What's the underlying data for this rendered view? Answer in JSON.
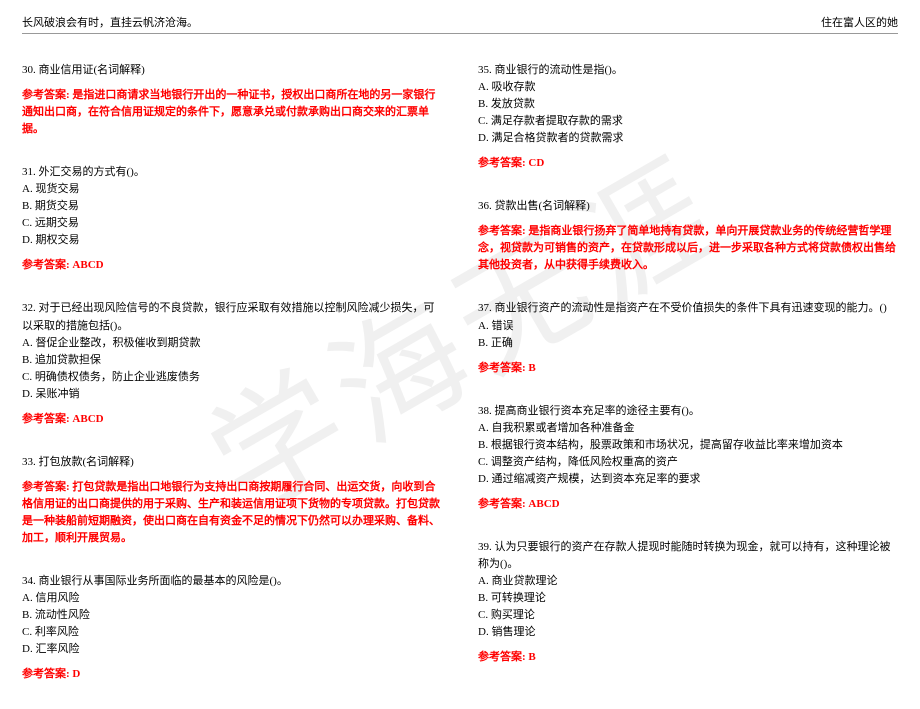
{
  "watermark_text": "学海无涯",
  "header": {
    "left": "长风破浪会有时，直挂云帆济沧海。",
    "right": "住在富人区的她"
  },
  "left_column": [
    {
      "question": "30. 商业信用证(名词解释)",
      "options": [],
      "answer": "参考答案: 是指进口商请求当地银行开出的一种证书，授权出口商所在地的另一家银行通知出口商，在符合信用证规定的条件下，愿意承兑或付款承购出口商交来的汇票单据。"
    },
    {
      "question": "31. 外汇交易的方式有()。",
      "options": [
        "A. 现货交易",
        "B. 期货交易",
        "C. 远期交易",
        "D. 期权交易"
      ],
      "answer": "参考答案: ABCD"
    },
    {
      "question": "32. 对于已经出现风险信号的不良贷款，银行应采取有效措施以控制风险减少损失，可以采取的措施包括()。",
      "options": [
        "A. 督促企业整改，积极催收到期贷款",
        "B. 追加贷款担保",
        "C. 明确债权债务，防止企业逃废债务",
        "D. 呆账冲销"
      ],
      "answer": "参考答案: ABCD"
    },
    {
      "question": "33. 打包放款(名词解释)",
      "options": [],
      "answer": "参考答案: 打包贷款是指出口地银行为支持出口商按期履行合同、出运交货，向收到合格信用证的出口商提供的用于采购、生产和装运信用证项下货物的专项贷款。打包贷款是一种装船前短期融资，使出口商在自有资金不足的情况下仍然可以办理采购、备料、加工，顺利开展贸易。"
    },
    {
      "question": "34. 商业银行从事国际业务所面临的最基本的风险是()。",
      "options": [
        "A. 信用风险",
        "B. 流动性风险",
        "C. 利率风险",
        "D. 汇率风险"
      ],
      "answer": "参考答案: D"
    }
  ],
  "right_column": [
    {
      "question": "35. 商业银行的流动性是指()。",
      "options": [
        "A. 吸收存款",
        "B. 发放贷款",
        "C. 满足存款者提取存款的需求",
        "D. 满足合格贷款者的贷款需求"
      ],
      "answer": "参考答案: CD"
    },
    {
      "question": "36. 贷款出售(名词解释)",
      "options": [],
      "answer": "参考答案: 是指商业银行扬弃了简单地持有贷款，单向开展贷款业务的传统经营哲学理念，视贷款为可销售的资产，在贷款形成以后，进一步采取各种方式将贷款债权出售给其他投资者，从中获得手续费收入。"
    },
    {
      "question": "37. 商业银行资产的流动性是指资产在不受价值损失的条件下具有迅速变现的能力。()",
      "options": [
        "A. 错误",
        "B. 正确"
      ],
      "answer": "参考答案: B"
    },
    {
      "question": "38. 提高商业银行资本充足率的途径主要有()。",
      "options": [
        "A. 自我积累或者增加各种准备金",
        "B. 根据银行资本结构，股票政策和市场状况，提高留存收益比率来增加资本",
        "C. 调整资产结构，降低风险权重高的资产",
        "D. 通过缩减资产规模，达到资本充足率的要求"
      ],
      "answer": "参考答案: ABCD"
    },
    {
      "question": "39. 认为只要银行的资产在存款人提现时能随时转换为现金，就可以持有，这种理论被称为()。",
      "options": [
        "A. 商业贷款理论",
        "B. 可转换理论",
        "C. 购买理论",
        "D. 销售理论"
      ],
      "answer": "参考答案: B"
    }
  ]
}
